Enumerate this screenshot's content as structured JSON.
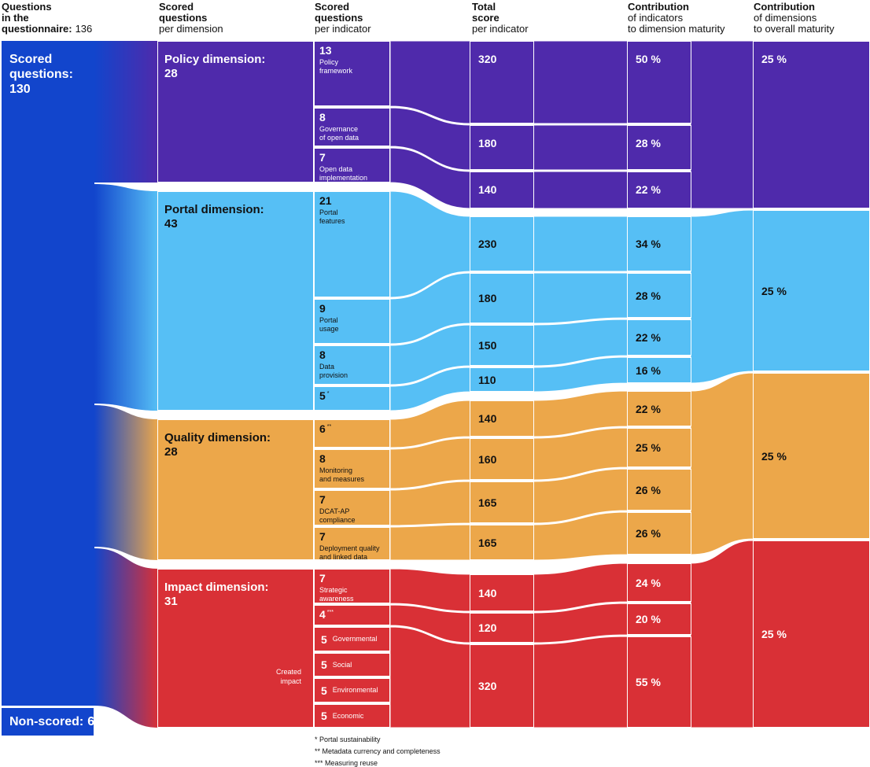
{
  "headers": [
    {
      "title": [
        "Questions",
        "in the",
        "questionnaire:"
      ],
      "value": "136"
    },
    {
      "title": [
        "Scored",
        "questions"
      ],
      "subtitle": [
        "per dimension"
      ]
    },
    {
      "title": [
        "Scored",
        "questions"
      ],
      "subtitle": [
        "per indicator"
      ]
    },
    {
      "title": [
        "Total",
        "score"
      ],
      "subtitle": [
        "per indicator"
      ]
    },
    {
      "title": [
        "Contribution"
      ],
      "subtitle": [
        "of indicators",
        "to dimension maturity"
      ]
    },
    {
      "title": [
        "Contribution"
      ],
      "subtitle": [
        "of dimensions",
        "to overall maturity"
      ]
    }
  ],
  "scored": {
    "label": "Scored questions:",
    "value": "130"
  },
  "non_scored": {
    "label": "Non-scored:",
    "value": "6"
  },
  "dimensions": [
    {
      "name": "Policy dimension:",
      "questions": "28",
      "overall": "25 %",
      "indicators": [
        {
          "questions": "13",
          "label": [
            "Policy",
            "framework"
          ]
        },
        {
          "questions": "8",
          "label": [
            "Governance",
            "of open data"
          ]
        },
        {
          "questions": "7",
          "label": [
            "Open data",
            "implementation"
          ]
        }
      ],
      "scores": [
        "320",
        "180",
        "140"
      ],
      "contributions": [
        "50 %",
        "28 %",
        "22 %"
      ]
    },
    {
      "name": "Portal dimension:",
      "questions": "43",
      "overall": "25 %",
      "indicators": [
        {
          "questions": "21",
          "label": [
            "Portal",
            "features"
          ]
        },
        {
          "questions": "9",
          "label": [
            "Portal",
            "usage"
          ]
        },
        {
          "questions": "8",
          "label": [
            "Data",
            "provision"
          ]
        },
        {
          "questions": "5",
          "note": "*"
        }
      ],
      "scores": [
        "230",
        "180",
        "150",
        "110"
      ],
      "contributions": [
        "34 %",
        "28 %",
        "22 %",
        "16 %"
      ]
    },
    {
      "name": "Quality dimension:",
      "questions": "28",
      "overall": "25 %",
      "indicators": [
        {
          "questions": "6",
          "note": "**"
        },
        {
          "questions": "8",
          "label": [
            "Monitoring",
            "and measures"
          ]
        },
        {
          "questions": "7",
          "label": [
            "DCAT-AP",
            "compliance"
          ]
        },
        {
          "questions": "7",
          "label": [
            "Deployment quality",
            "and linked data"
          ]
        }
      ],
      "scores": [
        "140",
        "160",
        "165",
        "165"
      ],
      "contributions": [
        "22 %",
        "25 %",
        "26 %",
        "26 %"
      ]
    },
    {
      "name": "Impact dimension:",
      "questions": "31",
      "overall": "25 %",
      "indicators": [
        {
          "questions": "7",
          "label": [
            "Strategic",
            "awareness"
          ]
        },
        {
          "questions": "4",
          "note": "***"
        },
        {
          "questions": "5",
          "label": [
            "Governmental"
          ]
        },
        {
          "questions": "5",
          "label": [
            "Social"
          ]
        },
        {
          "questions": "5",
          "label": [
            "Environmental"
          ]
        },
        {
          "questions": "5",
          "label": [
            "Economic"
          ]
        }
      ],
      "scores": [
        "140",
        "120",
        "320"
      ],
      "contributions": [
        "24 %",
        "20 %",
        "55 %"
      ]
    }
  ],
  "created_impact": "Created impact",
  "footnotes": [
    "* Portal sustainability",
    "** Metadata currency and completeness",
    "*** Measuring reuse"
  ]
}
